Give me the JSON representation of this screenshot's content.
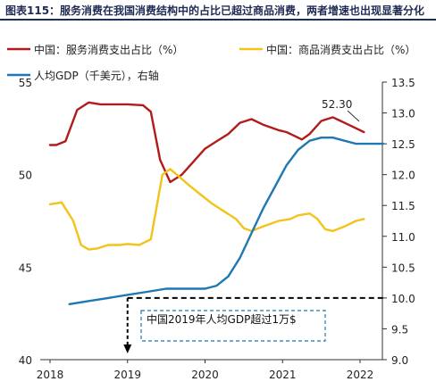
{
  "figure": {
    "title": "图表115：服务消费在我国消费结构中的占比已超过商品消费，两者增速也出现显著分化"
  },
  "legend": {
    "items": [
      {
        "label": "中国：服务消费支出占比（%）",
        "color": "#b31b1b"
      },
      {
        "label": "中国：商品消费支出占比（%）",
        "color": "#f2c318"
      },
      {
        "label": "人均GDP（千美元），右轴",
        "color": "#1f77b4"
      }
    ]
  },
  "chart_data": {
    "type": "line",
    "x_ticks": [
      "2018",
      "2019",
      "2020",
      "2021",
      "2022"
    ],
    "x_range": [
      2018,
      2022.3
    ],
    "y_left": {
      "range": [
        40,
        55
      ],
      "ticks": [
        "40",
        "45",
        "50",
        "55"
      ]
    },
    "y_right": {
      "range": [
        9.0,
        13.5
      ],
      "ticks": [
        "9.0",
        "9.5",
        "10.0",
        "10.5",
        "11.0",
        "11.5",
        "12.0",
        "12.5",
        "13.0",
        "13.5"
      ]
    },
    "series": [
      {
        "name": "中国：服务消费支出占比（%）",
        "axis": "left",
        "color": "#b31b1b",
        "points": [
          [
            2018.0,
            51.6
          ],
          [
            2018.08,
            51.6
          ],
          [
            2018.2,
            51.8
          ],
          [
            2018.35,
            53.5
          ],
          [
            2018.5,
            53.9
          ],
          [
            2018.65,
            53.8
          ],
          [
            2018.85,
            53.8
          ],
          [
            2019.0,
            53.8
          ],
          [
            2019.2,
            53.75
          ],
          [
            2019.3,
            53.4
          ],
          [
            2019.42,
            50.8
          ],
          [
            2019.55,
            49.6
          ],
          [
            2019.7,
            50.0
          ],
          [
            2019.85,
            50.7
          ],
          [
            2020.0,
            51.4
          ],
          [
            2020.15,
            51.8
          ],
          [
            2020.3,
            52.2
          ],
          [
            2020.45,
            52.8
          ],
          [
            2020.6,
            53.0
          ],
          [
            2020.75,
            52.7
          ],
          [
            2020.95,
            52.4
          ],
          [
            2021.05,
            52.3
          ],
          [
            2021.15,
            52.1
          ],
          [
            2021.25,
            51.9
          ],
          [
            2021.35,
            52.2
          ],
          [
            2021.5,
            52.9
          ],
          [
            2021.65,
            53.1
          ],
          [
            2021.8,
            52.8
          ],
          [
            2021.95,
            52.5
          ],
          [
            2022.05,
            52.3
          ]
        ]
      },
      {
        "name": "中国：商品消费支出占比（%）",
        "axis": "left",
        "color": "#f2c318",
        "points": [
          [
            2018.0,
            48.4
          ],
          [
            2018.08,
            48.45
          ],
          [
            2018.15,
            48.5
          ],
          [
            2018.3,
            47.5
          ],
          [
            2018.4,
            46.2
          ],
          [
            2018.5,
            45.95
          ],
          [
            2018.6,
            46.0
          ],
          [
            2018.75,
            46.2
          ],
          [
            2018.9,
            46.2
          ],
          [
            2019.0,
            46.25
          ],
          [
            2019.15,
            46.2
          ],
          [
            2019.3,
            46.5
          ],
          [
            2019.45,
            50.0
          ],
          [
            2019.55,
            50.3
          ],
          [
            2019.65,
            49.95
          ],
          [
            2019.8,
            49.4
          ],
          [
            2019.95,
            48.9
          ],
          [
            2020.1,
            48.4
          ],
          [
            2020.25,
            48.0
          ],
          [
            2020.4,
            47.6
          ],
          [
            2020.5,
            47.1
          ],
          [
            2020.6,
            46.95
          ],
          [
            2020.75,
            47.2
          ],
          [
            2020.95,
            47.5
          ],
          [
            2021.1,
            47.6
          ],
          [
            2021.2,
            47.8
          ],
          [
            2021.35,
            47.9
          ],
          [
            2021.45,
            47.6
          ],
          [
            2021.55,
            47.05
          ],
          [
            2021.65,
            46.95
          ],
          [
            2021.8,
            47.2
          ],
          [
            2021.95,
            47.5
          ],
          [
            2022.05,
            47.6
          ]
        ]
      },
      {
        "name": "人均GDP（千美元），右轴",
        "axis": "right",
        "color": "#1f77b4",
        "points": [
          [
            2018.25,
            9.9
          ],
          [
            2018.5,
            9.95
          ],
          [
            2018.75,
            10.0
          ],
          [
            2019.0,
            10.05
          ],
          [
            2019.25,
            10.1
          ],
          [
            2019.5,
            10.15
          ],
          [
            2019.75,
            10.15
          ],
          [
            2020.0,
            10.15
          ],
          [
            2020.15,
            10.2
          ],
          [
            2020.3,
            10.35
          ],
          [
            2020.45,
            10.65
          ],
          [
            2020.6,
            11.05
          ],
          [
            2020.75,
            11.45
          ],
          [
            2020.9,
            11.8
          ],
          [
            2021.05,
            12.15
          ],
          [
            2021.2,
            12.4
          ],
          [
            2021.35,
            12.55
          ],
          [
            2021.5,
            12.6
          ],
          [
            2021.65,
            12.6
          ],
          [
            2021.8,
            12.55
          ],
          [
            2021.95,
            12.5
          ],
          [
            2022.1,
            12.5
          ],
          [
            2022.3,
            12.5
          ]
        ]
      }
    ],
    "annotations": [
      {
        "text": "52.30"
      },
      {
        "text": "中国2019年人均GDP超过1万$"
      }
    ],
    "reference": {
      "y_right": 10.0,
      "x": 2019.0
    }
  }
}
